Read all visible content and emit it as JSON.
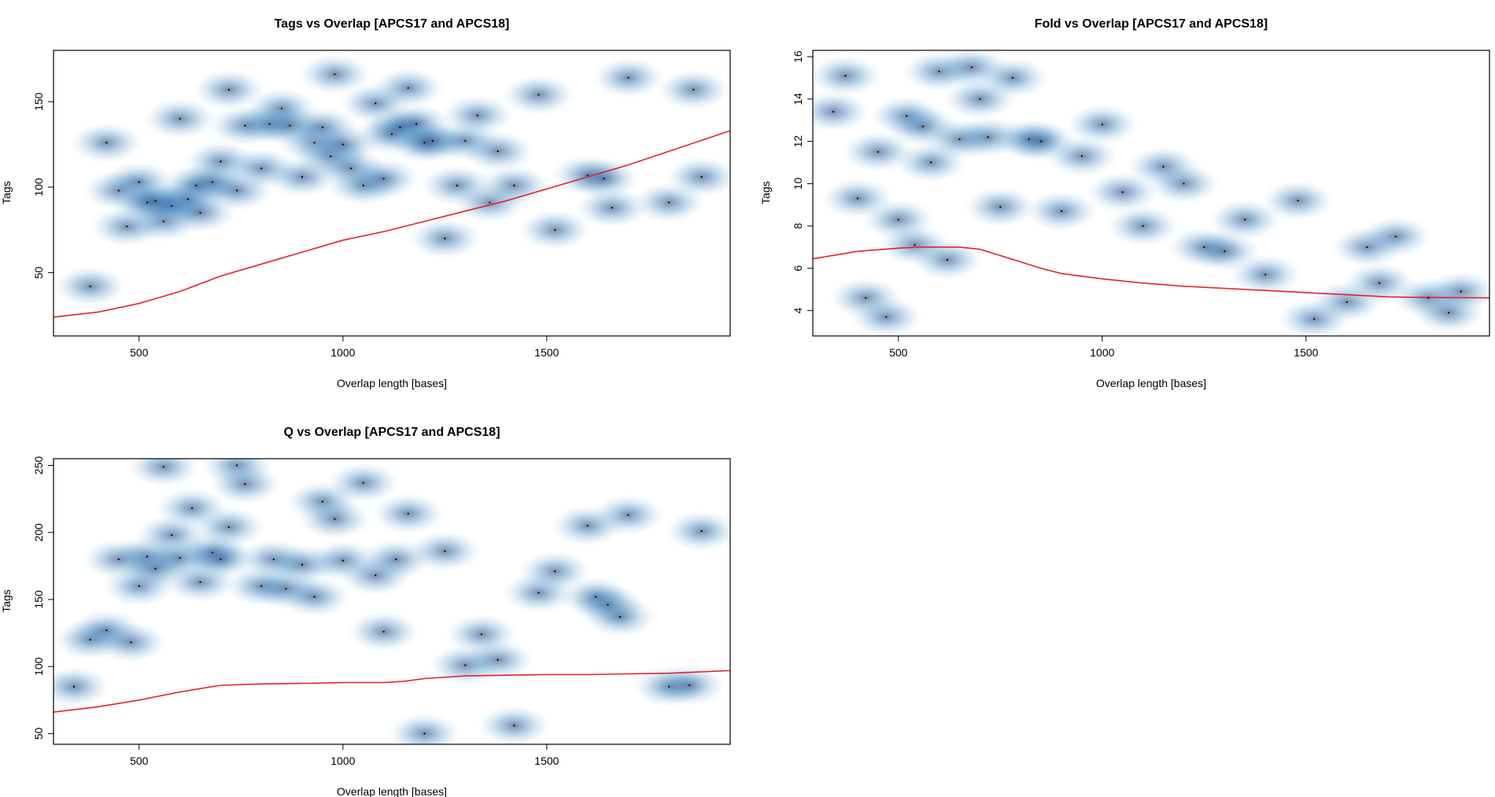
{
  "colors": {
    "density_dark": "#08306b",
    "density_mid": "#2171b5",
    "density_light": "#c6dbef",
    "smooth_line": "#e0222e",
    "point": "#000000"
  },
  "chart_data": [
    {
      "type": "scatter",
      "style": "smoothScatter density with loess smooth line",
      "title": "Tags vs Overlap [APCS17 and APCS18]",
      "xlabel": "Overlap length [bases]",
      "ylabel": "Tags",
      "xlim": [
        290,
        1950
      ],
      "ylim": [
        13,
        180
      ],
      "xticks": [
        500,
        1000,
        1500
      ],
      "yticks": [
        50,
        100,
        150
      ],
      "smooth": {
        "x": [
          290,
          400,
          500,
          600,
          700,
          800,
          900,
          1000,
          1100,
          1200,
          1300,
          1400,
          1500,
          1600,
          1700,
          1800,
          1950
        ],
        "y": [
          24,
          27,
          32,
          39,
          48,
          55,
          62,
          69,
          74,
          80,
          86,
          92,
          99,
          106,
          113,
          121,
          133
        ]
      },
      "points": {
        "x": [
          380,
          420,
          450,
          470,
          500,
          520,
          540,
          560,
          580,
          600,
          620,
          640,
          650,
          680,
          700,
          720,
          740,
          760,
          800,
          820,
          850,
          870,
          900,
          930,
          950,
          970,
          980,
          1000,
          1020,
          1050,
          1080,
          1100,
          1120,
          1140,
          1160,
          1180,
          1200,
          1220,
          1250,
          1280,
          1300,
          1330,
          1360,
          1380,
          1420,
          1480,
          1520,
          1600,
          1640,
          1660,
          1700,
          1800,
          1860,
          1880
        ],
        "y": [
          42,
          126,
          98,
          77,
          103,
          91,
          92,
          80,
          89,
          140,
          93,
          101,
          85,
          103,
          115,
          157,
          98,
          136,
          111,
          137,
          146,
          136,
          106,
          126,
          135,
          118,
          166,
          125,
          111,
          101,
          149,
          105,
          131,
          135,
          158,
          137,
          126,
          127,
          70,
          101,
          127,
          142,
          91,
          121,
          101,
          154,
          75,
          107,
          105,
          88,
          164,
          91,
          157,
          106
        ]
      }
    },
    {
      "type": "scatter",
      "style": "smoothScatter density with loess smooth line",
      "title": "Fold vs Overlap [APCS17 and APCS18]",
      "xlabel": "Overlap length [bases]",
      "ylabel": "Tags",
      "xlim": [
        290,
        1950
      ],
      "ylim": [
        2.8,
        16.3
      ],
      "xticks": [
        500,
        1000,
        1500
      ],
      "yticks": [
        4,
        6,
        8,
        10,
        12,
        14,
        16
      ],
      "smooth": {
        "x": [
          290,
          400,
          500,
          550,
          600,
          650,
          700,
          750,
          800,
          850,
          900,
          1000,
          1100,
          1200,
          1300,
          1400,
          1500,
          1600,
          1700,
          1800,
          1950
        ],
        "y": [
          6.45,
          6.8,
          6.95,
          7.0,
          7.0,
          7.0,
          6.9,
          6.6,
          6.3,
          6.0,
          5.75,
          5.5,
          5.3,
          5.15,
          5.05,
          4.95,
          4.85,
          4.75,
          4.65,
          4.62,
          4.6
        ]
      },
      "points": {
        "x": [
          340,
          370,
          400,
          420,
          450,
          470,
          500,
          520,
          540,
          560,
          580,
          600,
          620,
          650,
          680,
          700,
          720,
          750,
          780,
          820,
          850,
          900,
          950,
          1000,
          1050,
          1100,
          1150,
          1200,
          1250,
          1300,
          1350,
          1400,
          1480,
          1520,
          1600,
          1650,
          1680,
          1720,
          1800,
          1850,
          1880
        ],
        "y": [
          13.4,
          15.1,
          9.3,
          4.6,
          11.5,
          3.7,
          8.3,
          13.2,
          7.1,
          12.7,
          11.0,
          15.3,
          6.4,
          12.1,
          15.5,
          14.0,
          12.2,
          8.9,
          15.0,
          12.1,
          12.0,
          8.7,
          11.3,
          12.8,
          9.6,
          8.0,
          10.8,
          10.0,
          7.0,
          6.8,
          8.3,
          5.7,
          9.2,
          3.6,
          4.4,
          7.0,
          5.3,
          7.5,
          4.6,
          3.9,
          4.9
        ]
      }
    },
    {
      "type": "scatter",
      "style": "smoothScatter density with loess smooth line",
      "title": "Q vs Overlap [APCS17 and APCS18]",
      "xlabel": "Overlap length [bases]",
      "ylabel": "Tags",
      "xlim": [
        290,
        1950
      ],
      "ylim": [
        42,
        255
      ],
      "xticks": [
        500,
        1000,
        1500
      ],
      "yticks": [
        50,
        100,
        150,
        200,
        250
      ],
      "smooth": {
        "x": [
          290,
          400,
          500,
          600,
          700,
          800,
          900,
          1000,
          1100,
          1150,
          1200,
          1300,
          1400,
          1500,
          1600,
          1700,
          1800,
          1950
        ],
        "y": [
          66,
          70,
          75,
          81,
          86,
          87,
          87.5,
          88,
          88,
          89,
          91,
          93,
          93.5,
          94,
          94,
          94.5,
          95,
          97
        ]
      },
      "points": {
        "x": [
          340,
          380,
          420,
          450,
          480,
          500,
          520,
          540,
          560,
          580,
          600,
          630,
          650,
          680,
          700,
          720,
          740,
          760,
          800,
          830,
          860,
          900,
          930,
          950,
          980,
          1000,
          1050,
          1080,
          1100,
          1130,
          1160,
          1200,
          1250,
          1300,
          1340,
          1380,
          1420,
          1480,
          1520,
          1600,
          1620,
          1650,
          1680,
          1700,
          1800,
          1850,
          1880
        ],
        "y": [
          85,
          120,
          127,
          180,
          118,
          160,
          182,
          173,
          249,
          198,
          181,
          218,
          163,
          185,
          180,
          204,
          250,
          236,
          160,
          180,
          158,
          176,
          152,
          223,
          210,
          179,
          237,
          168,
          126,
          180,
          214,
          50,
          186,
          101,
          124,
          105,
          56,
          155,
          171,
          205,
          152,
          146,
          137,
          213,
          85,
          86,
          201
        ]
      }
    }
  ]
}
